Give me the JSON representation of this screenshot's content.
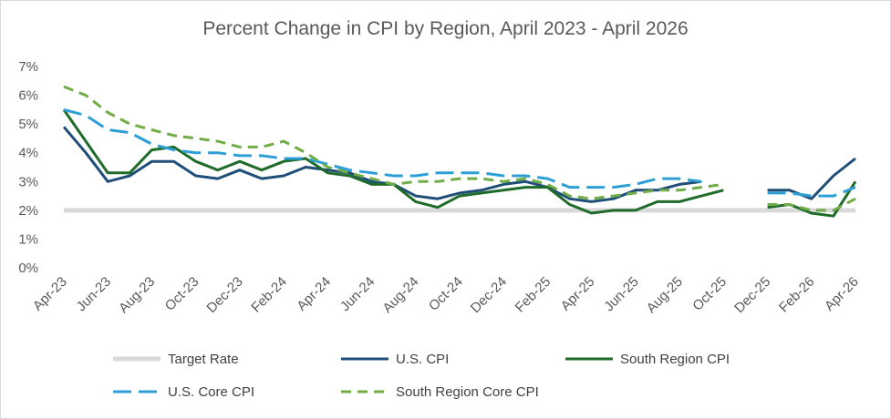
{
  "chart_data": {
    "type": "line",
    "title": "Percent Change in CPI by Region, April 2023 - April 2026",
    "xlabel": "",
    "ylabel": "",
    "ylim": [
      0,
      7
    ],
    "y_ticks": [
      "0%",
      "1%",
      "2%",
      "3%",
      "4%",
      "5%",
      "6%",
      "7%"
    ],
    "x_tick_labels": [
      "Apr-23",
      "Jun-23",
      "Aug-23",
      "Oct-23",
      "Dec-23",
      "Feb-24",
      "Apr-24",
      "Jun-24",
      "Aug-24",
      "Oct-24",
      "Dec-24",
      "Feb-25",
      "Apr-25",
      "Jun-25",
      "Aug-25",
      "Oct-25",
      "Dec-25",
      "Feb-26",
      "Apr-26"
    ],
    "x": [
      "Apr-23",
      "May-23",
      "Jun-23",
      "Jul-23",
      "Aug-23",
      "Sep-23",
      "Oct-23",
      "Nov-23",
      "Dec-23",
      "Jan-24",
      "Feb-24",
      "Mar-24",
      "Apr-24",
      "May-24",
      "Jun-24",
      "Jul-24",
      "Aug-24",
      "Sep-24",
      "Oct-24",
      "Nov-24",
      "Dec-24",
      "Jan-25",
      "Feb-25",
      "Mar-25",
      "Apr-25",
      "May-25",
      "Jun-25",
      "Jul-25",
      "Aug-25",
      "Sep-25",
      "Oct-25",
      "Nov-25",
      "Dec-25",
      "Jan-26",
      "Feb-26",
      "Mar-26",
      "Apr-26"
    ],
    "grid": false,
    "legend_position": "bottom",
    "series": [
      {
        "name": "Target Rate",
        "color": "#d9d9d9",
        "style": "solid",
        "values": [
          2,
          2,
          2,
          2,
          2,
          2,
          2,
          2,
          2,
          2,
          2,
          2,
          2,
          2,
          2,
          2,
          2,
          2,
          2,
          2,
          2,
          2,
          2,
          2,
          2,
          2,
          2,
          2,
          2,
          2,
          2,
          2,
          2,
          2,
          2,
          2,
          2
        ]
      },
      {
        "name": "U.S. CPI",
        "color": "#1f4e79",
        "style": "solid",
        "values": [
          4.9,
          4.0,
          3.0,
          3.2,
          3.7,
          3.7,
          3.2,
          3.1,
          3.4,
          3.1,
          3.2,
          3.5,
          3.4,
          3.3,
          3.0,
          2.9,
          2.5,
          2.4,
          2.6,
          2.7,
          2.9,
          3.0,
          2.8,
          2.4,
          2.3,
          2.4,
          2.7,
          2.7,
          2.9,
          3.0,
          null,
          null,
          2.7,
          2.7,
          2.4,
          3.2,
          3.8
        ]
      },
      {
        "name": "South Region CPI",
        "color": "#1e6b2a",
        "style": "solid",
        "values": [
          5.5,
          4.4,
          3.3,
          3.3,
          4.1,
          4.2,
          3.7,
          3.4,
          3.7,
          3.4,
          3.7,
          3.8,
          3.3,
          3.2,
          2.9,
          2.9,
          2.3,
          2.1,
          2.5,
          2.6,
          2.7,
          2.8,
          2.8,
          2.2,
          1.9,
          2.0,
          2.0,
          2.3,
          2.3,
          2.5,
          2.7,
          null,
          2.1,
          2.2,
          1.9,
          1.8,
          3.0
        ]
      },
      {
        "name": "U.S. Core CPI",
        "color": "#2e9fd6",
        "style": "long-dash",
        "values": [
          5.5,
          5.3,
          4.8,
          4.7,
          4.3,
          4.1,
          4.0,
          4.0,
          3.9,
          3.9,
          3.8,
          3.8,
          3.6,
          3.4,
          3.3,
          3.2,
          3.2,
          3.3,
          3.3,
          3.3,
          3.2,
          3.2,
          3.1,
          2.8,
          2.8,
          2.8,
          2.9,
          3.1,
          3.1,
          3.0,
          null,
          null,
          2.6,
          2.6,
          2.5,
          2.5,
          2.8
        ]
      },
      {
        "name": "South Region Core CPI",
        "color": "#70ad47",
        "style": "dash",
        "values": [
          6.3,
          6.0,
          5.4,
          5.0,
          4.8,
          4.6,
          4.5,
          4.4,
          4.2,
          4.2,
          4.4,
          4.0,
          3.5,
          3.3,
          3.1,
          2.9,
          3.0,
          3.0,
          3.1,
          3.1,
          3.0,
          3.1,
          2.9,
          2.5,
          2.4,
          2.5,
          2.6,
          2.7,
          2.7,
          2.8,
          2.9,
          null,
          2.2,
          2.2,
          2.0,
          2.0,
          2.4
        ]
      }
    ]
  }
}
